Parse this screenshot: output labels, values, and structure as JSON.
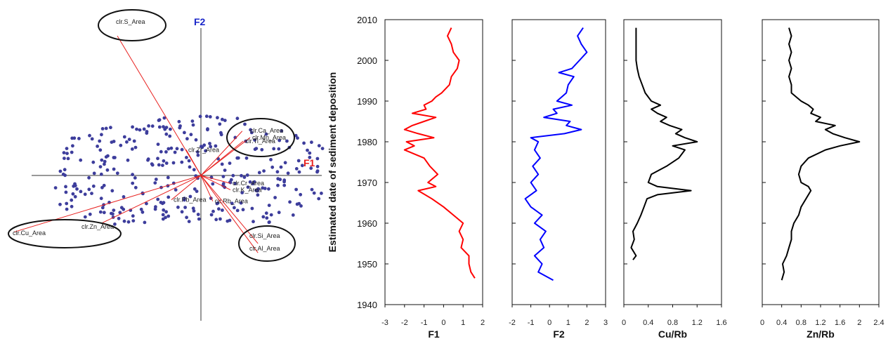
{
  "chart_data": [
    {
      "type": "scatter",
      "subtype": "biplot",
      "x_axis_name": "F1",
      "y_axis_name": "F2",
      "x_axis_color": "#e8211f",
      "y_axis_color": "#1b27c9",
      "point_color": "#3d3d9c",
      "vector_color": "#e8211f",
      "vectors": [
        {
          "label": "clr.S_Area",
          "x": -0.85,
          "y": 1.95,
          "circled": true
        },
        {
          "label": "clr.Ca_Area",
          "x": 0.42,
          "y": 0.62,
          "circled": true
        },
        {
          "label": "clr.Mn_Area",
          "x": 0.5,
          "y": 0.53,
          "circled": false
        },
        {
          "label": "clr.Ti_Area",
          "x": 0.43,
          "y": 0.48,
          "circled": false
        },
        {
          "label": "clr.Zr_Area",
          "x": -0.15,
          "y": 0.36,
          "circled": false
        },
        {
          "label": "clr.Cr_Area",
          "x": 0.3,
          "y": -0.11,
          "circled": false
        },
        {
          "label": "clr.K_Area",
          "x": 0.3,
          "y": -0.2,
          "circled": false
        },
        {
          "label": "clr.Rb_Area",
          "x": 0.12,
          "y": -0.36,
          "circled": false
        },
        {
          "label": "clr.Pb_Area",
          "x": -0.3,
          "y": -0.34,
          "circled": false
        },
        {
          "label": "clr.Si_Area",
          "x": 0.58,
          "y": -0.95,
          "circled": true
        },
        {
          "label": "clr.Al_Area",
          "x": 0.58,
          "y": -1.08,
          "circled": true
        },
        {
          "label": "clr.Zn_Area",
          "x": -1.0,
          "y": -0.66,
          "circled": false
        },
        {
          "label": "clr.Cu_Area",
          "x": -1.9,
          "y": -0.79,
          "circled": true
        }
      ]
    },
    {
      "type": "line",
      "shared_y": {
        "label": "Estimated date of sediment deposition",
        "ylim": [
          1940,
          2010
        ],
        "ticks": [
          1940,
          1950,
          1960,
          1970,
          1980,
          1990,
          2000,
          2010
        ]
      },
      "panels": [
        {
          "xlabel": "F1",
          "color": "#ff0000",
          "xlim": [
            -3,
            2
          ],
          "xticks": [
            "-3",
            "-2",
            "-1",
            "0",
            "1",
            "2"
          ],
          "y": [
            1946.5,
            1948,
            1950,
            1952,
            1954,
            1956,
            1958,
            1960,
            1962,
            1964,
            1966,
            1968,
            1969,
            1970,
            1972,
            1974,
            1976,
            1978,
            1979,
            1980,
            1981,
            1982,
            1983,
            1984,
            1985,
            1986,
            1987,
            1988,
            1989,
            1990,
            1991,
            1992,
            1994,
            1996,
            1998,
            2000,
            2002,
            2004,
            2006,
            2008
          ],
          "x": [
            1.6,
            1.4,
            1.3,
            1.3,
            0.9,
            1.0,
            0.8,
            1.0,
            0.5,
            0.0,
            -0.6,
            -1.3,
            -0.4,
            -0.8,
            -0.3,
            -0.7,
            -1.0,
            -2.0,
            -1.5,
            -1.9,
            -0.5,
            -1.3,
            -2.0,
            -1.6,
            -1.0,
            -0.4,
            -1.6,
            -0.9,
            -1.0,
            -0.6,
            -0.4,
            -0.1,
            0.3,
            0.4,
            0.7,
            0.8,
            0.5,
            0.4,
            0.2,
            0.4
          ]
        },
        {
          "xlabel": "F2",
          "color": "#0000ff",
          "xlim": [
            -2,
            3
          ],
          "xticks": [
            "-2",
            "-1",
            "0",
            "1",
            "2",
            "3"
          ],
          "y": [
            1946,
            1948,
            1950,
            1952,
            1954,
            1956,
            1958,
            1960,
            1962,
            1964,
            1966,
            1968,
            1970,
            1972,
            1974,
            1976,
            1978,
            1980,
            1981,
            1982,
            1983,
            1984,
            1985,
            1986,
            1987,
            1988,
            1989,
            1990,
            1992,
            1994,
            1996,
            1997,
            1998,
            2000,
            2002,
            2004,
            2006,
            2008
          ],
          "x": [
            0.2,
            -0.6,
            -0.4,
            -0.8,
            -0.3,
            -0.5,
            -0.2,
            -0.8,
            -0.4,
            -1.0,
            -1.3,
            -0.7,
            -1.0,
            -0.6,
            -0.9,
            -0.5,
            -0.8,
            -0.6,
            -1.0,
            0.8,
            1.7,
            0.9,
            1.1,
            -0.3,
            0.4,
            0.2,
            1.2,
            0.4,
            0.9,
            1.0,
            1.3,
            0.5,
            1.2,
            1.6,
            2.0,
            1.7,
            1.5,
            1.8
          ]
        },
        {
          "xlabel": "Cu/Rb",
          "color": "#000000",
          "xlim": [
            0,
            1.6
          ],
          "xticks": [
            "0",
            "0.4",
            "0.8",
            "1.2",
            "1.6"
          ],
          "y": [
            1951,
            1952,
            1954,
            1956,
            1958,
            1960,
            1962,
            1964,
            1966,
            1967,
            1968,
            1969,
            1970,
            1972,
            1974,
            1976,
            1978,
            1979,
            1980,
            1981,
            1982,
            1983,
            1984,
            1985,
            1986,
            1987,
            1988,
            1989,
            1990,
            1992,
            1994,
            1996,
            1998,
            2000,
            2002,
            2004,
            2006,
            2008
          ],
          "x": [
            0.15,
            0.2,
            0.12,
            0.17,
            0.15,
            0.22,
            0.28,
            0.33,
            0.38,
            0.55,
            1.1,
            0.55,
            0.4,
            0.45,
            0.7,
            0.9,
            1.0,
            0.8,
            1.2,
            1.0,
            0.85,
            0.95,
            0.75,
            0.6,
            0.7,
            0.55,
            0.45,
            0.6,
            0.45,
            0.35,
            0.3,
            0.25,
            0.22,
            0.2,
            0.2,
            0.2,
            0.2,
            0.2
          ]
        },
        {
          "xlabel": "Zn/Rb",
          "color": "#000000",
          "xlim": [
            0,
            2.4
          ],
          "xticks": [
            "0",
            "0.4",
            "0.8",
            "1.2",
            "1.6",
            "2",
            "2.4"
          ],
          "y": [
            1946,
            1948,
            1950,
            1952,
            1954,
            1956,
            1958,
            1960,
            1962,
            1964,
            1966,
            1968,
            1969,
            1970,
            1972,
            1974,
            1976,
            1978,
            1979,
            1980,
            1981,
            1982,
            1983,
            1984,
            1985,
            1986,
            1987,
            1988,
            1989,
            1990,
            1992,
            1994,
            1996,
            1998,
            2000,
            2002,
            2004,
            2006,
            2008
          ],
          "x": [
            0.4,
            0.45,
            0.42,
            0.5,
            0.55,
            0.6,
            0.6,
            0.65,
            0.75,
            0.8,
            0.9,
            1.0,
            0.95,
            0.8,
            0.75,
            0.8,
            0.95,
            1.3,
            1.6,
            2.0,
            1.7,
            1.45,
            1.3,
            1.5,
            1.1,
            1.2,
            1.0,
            1.05,
            0.95,
            0.8,
            0.6,
            0.6,
            0.55,
            0.6,
            0.55,
            0.6,
            0.55,
            0.6,
            0.55
          ]
        }
      ]
    }
  ]
}
